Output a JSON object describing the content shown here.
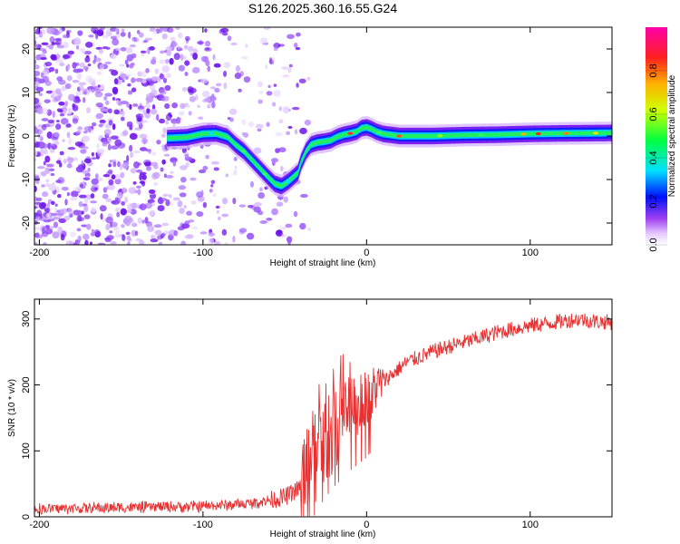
{
  "figure_title": "S126.2025.360.16.55.G24",
  "chart_data": [
    {
      "type": "heatmap",
      "title": "S126.2025.360.16.55.G24",
      "xlabel": "Height of straight line (km)",
      "ylabel": "Frequency (Hz)",
      "xlim": [
        -203,
        150
      ],
      "ylim": [
        -25,
        25
      ],
      "xticks": [
        -200,
        -100,
        0,
        100
      ],
      "yticks": [
        20,
        10,
        0,
        -10,
        -20
      ],
      "colorbar": {
        "label": "Normalized spectral amplitude",
        "range": [
          0,
          1
        ],
        "ticks": [
          "0.0",
          "0.2",
          "0.4",
          "0.6",
          "0.8"
        ]
      },
      "ridge": {
        "x": [
          -122,
          -110,
          -100,
          -92,
          -85,
          -80,
          -75,
          -70,
          -65,
          -60,
          -56,
          -52,
          -48,
          -45,
          -42,
          -40,
          -37,
          -34,
          -30,
          -26,
          -22,
          -18,
          -14,
          -10,
          -6,
          -3,
          0,
          3,
          6,
          10,
          20,
          40,
          60,
          80,
          100,
          120,
          150
        ],
        "y": [
          -0.5,
          -0.3,
          0.5,
          0.6,
          -0.2,
          -2,
          -3.5,
          -5.5,
          -7.5,
          -9.5,
          -11,
          -11.5,
          -10.5,
          -9.5,
          -8.5,
          -6,
          -3.5,
          -2,
          -1.5,
          -1.3,
          -1.0,
          -0.2,
          0.3,
          0.6,
          1.0,
          1.8,
          2.0,
          1.6,
          1.0,
          0.5,
          0.0,
          0.0,
          0.2,
          0.3,
          0.5,
          0.6,
          0.7
        ]
      },
      "noise_region_x": [
        -203,
        -55
      ]
    },
    {
      "type": "line",
      "xlabel": "Height of straight line (km)",
      "ylabel": "SNR (10 * v/v)",
      "xlim": [
        -203,
        150
      ],
      "ylim": [
        0,
        330
      ],
      "xticks": [
        -200,
        -100,
        0,
        100
      ],
      "yticks": [
        0,
        100,
        200,
        300
      ],
      "series": [
        {
          "name": "SNR",
          "color": "#e83030",
          "trend_x": [
            -203,
            -150,
            -100,
            -70,
            -50,
            -40,
            -35,
            -30,
            -25,
            -20,
            -15,
            -10,
            -5,
            0,
            5,
            10,
            15,
            20,
            25,
            30,
            40,
            50,
            60,
            70,
            80,
            90,
            100,
            110,
            120,
            130,
            140,
            150
          ],
          "trend_y": [
            12,
            14,
            16,
            20,
            30,
            45,
            70,
            100,
            120,
            135,
            148,
            160,
            170,
            180,
            195,
            205,
            215,
            225,
            235,
            240,
            250,
            258,
            265,
            272,
            280,
            285,
            290,
            293,
            297,
            300,
            296,
            295
          ]
        }
      ]
    }
  ],
  "colors": {
    "axis": "#000000",
    "snr_line": "#e83030",
    "background": "#ffffff"
  }
}
